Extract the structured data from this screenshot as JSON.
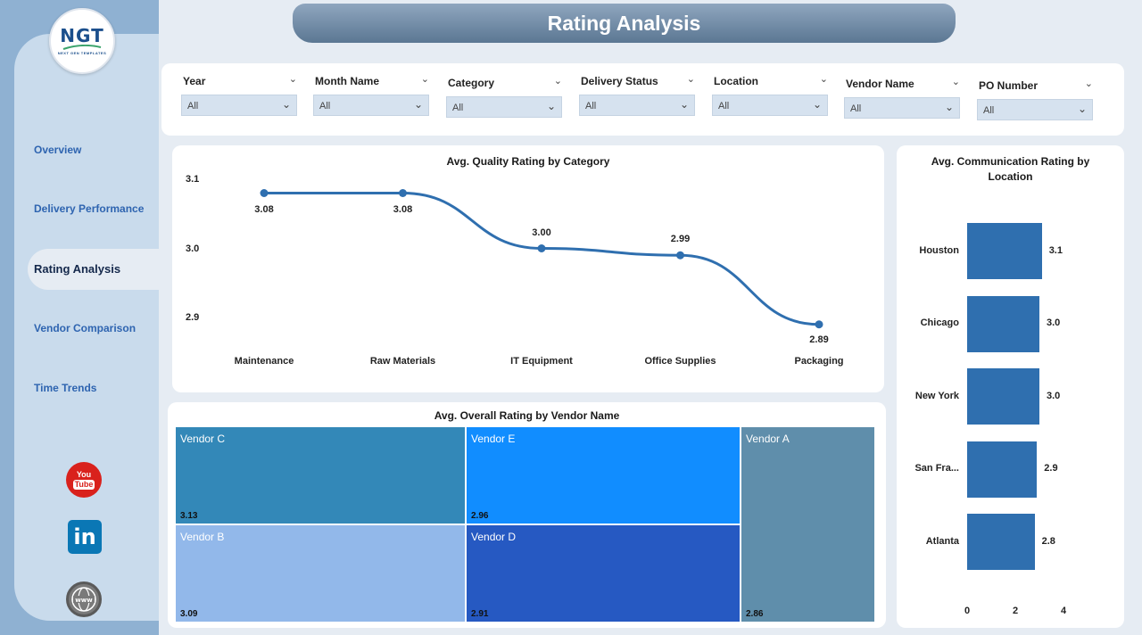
{
  "logo": {
    "text": "NGT",
    "subtext": "NEXT GEN TEMPLATES"
  },
  "page_title": "Rating Analysis",
  "sidebar": {
    "items": [
      {
        "label": "Overview",
        "active": false
      },
      {
        "label": "Delivery Performance",
        "active": false
      },
      {
        "label": "Rating Analysis",
        "active": true
      },
      {
        "label": "Vendor Comparison",
        "active": false
      },
      {
        "label": "Time Trends",
        "active": false
      }
    ],
    "social": {
      "youtube_top": "You",
      "youtube_bottom": "Tube",
      "linkedin": "in"
    }
  },
  "filters": [
    {
      "label": "Year",
      "value": "All"
    },
    {
      "label": "Month Name",
      "value": "All"
    },
    {
      "label": "Category",
      "value": "All"
    },
    {
      "label": "Delivery Status",
      "value": "All"
    },
    {
      "label": "Location",
      "value": "All"
    },
    {
      "label": "Vendor Name",
      "value": "All"
    },
    {
      "label": "PO Number",
      "value": "All"
    }
  ],
  "chart_data": [
    {
      "type": "line",
      "title": "Avg. Quality Rating by Category",
      "categories": [
        "Maintenance",
        "Raw Materials",
        "IT Equipment",
        "Office Supplies",
        "Packaging"
      ],
      "values": [
        3.08,
        3.08,
        3.0,
        2.99,
        2.89
      ],
      "value_labels": [
        "3.08",
        "3.08",
        "3.00",
        "2.99",
        "2.89"
      ],
      "yticks": [
        "3.1",
        "3.0",
        "2.9"
      ],
      "ylim": [
        2.9,
        3.1
      ],
      "color": "#2f6faf"
    },
    {
      "type": "treemap",
      "title": "Avg. Overall Rating by Vendor Name",
      "items": [
        {
          "name": "Vendor C",
          "value": 3.13,
          "label": "3.13",
          "color": "#3388b8"
        },
        {
          "name": "Vendor E",
          "value": 2.96,
          "label": "2.96",
          "color": "#118dff"
        },
        {
          "name": "Vendor A",
          "value": 2.86,
          "label": "2.86",
          "color": "#5f8eab"
        },
        {
          "name": "Vendor B",
          "value": 3.09,
          "label": "3.09",
          "color": "#92b8ea"
        },
        {
          "name": "Vendor D",
          "value": 2.91,
          "label": "2.91",
          "color": "#2659c2"
        }
      ]
    },
    {
      "type": "bar",
      "orientation": "horizontal",
      "title": "Avg. Communication Rating by Location",
      "categories": [
        "Houston",
        "Chicago",
        "New York",
        "San Fra...",
        "Atlanta"
      ],
      "values": [
        3.1,
        3.0,
        3.0,
        2.9,
        2.8
      ],
      "value_labels": [
        "3.1",
        "3.0",
        "3.0",
        "2.9",
        "2.8"
      ],
      "xticks": [
        "0",
        "2",
        "4"
      ],
      "xlim": [
        0,
        4
      ],
      "color": "#2f6faf"
    }
  ]
}
